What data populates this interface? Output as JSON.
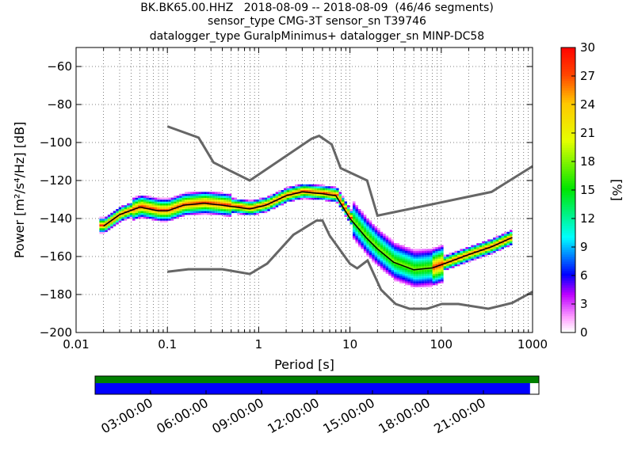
{
  "title": {
    "line1": "BK.BK65.00.HHZ   2018-08-09 -- 2018-08-09  (46/46 segments)",
    "line2": "sensor_type CMG-3T sensor_sn T39746",
    "line3": "datalogger_type GuralpMinimus+ datalogger_sn MINP-DC58"
  },
  "chart_data": [
    {
      "type": "heatmap",
      "xlabel": "Period [s]",
      "ylabel": "Power [m²/s⁴/Hz] [dB]",
      "xscale": "log",
      "xlim": [
        0.01,
        1000
      ],
      "ylim": [
        -200,
        -50
      ],
      "xticks": [
        0.01,
        0.1,
        1,
        10,
        100,
        1000
      ],
      "xtick_labels": [
        "0.01",
        "0.1",
        "1",
        "10",
        "100",
        "1000"
      ],
      "yticks": [
        -200,
        -180,
        -160,
        -140,
        -120,
        -100,
        -80,
        -60
      ],
      "ytick_labels": [
        "−200",
        "−180",
        "−160",
        "−140",
        "−120",
        "−100",
        "−80",
        "−60"
      ],
      "grid": true,
      "colorbar": {
        "label": "[%]",
        "range": [
          0,
          30
        ],
        "ticks": [
          0,
          3,
          6,
          9,
          12,
          15,
          18,
          21,
          24,
          27,
          30
        ],
        "tick_labels": [
          "0",
          "3",
          "6",
          "9",
          "12",
          "15",
          "18",
          "21",
          "24",
          "27",
          "30"
        ]
      },
      "nhnm": {
        "x": [
          0.1,
          0.22,
          0.32,
          0.8,
          3.8,
          4.6,
          6.3,
          7.9,
          15.4,
          20,
          354.8,
          1000
        ],
        "y": [
          -91.5,
          -97.4,
          -110.5,
          -120,
          -98,
          -96.5,
          -101,
          -113.5,
          -120,
          -138.5,
          -126,
          -112.5
        ]
      },
      "nlnm": {
        "x": [
          0.1,
          0.17,
          0.4,
          0.8,
          1.24,
          2.4,
          4.3,
          5,
          6,
          10,
          12,
          15.6,
          21.9,
          31.6,
          45,
          70,
          101,
          154,
          328,
          600,
          1000
        ],
        "y": [
          -168,
          -166.7,
          -166.7,
          -169.2,
          -163.7,
          -148.6,
          -141.1,
          -141.1,
          -149,
          -163.8,
          -166.2,
          -162.1,
          -177.5,
          -185,
          -187.5,
          -187.5,
          -185,
          -185,
          -187.5,
          -184.4,
          -178.6
        ]
      },
      "median": {
        "x": [
          0.02,
          0.03,
          0.05,
          0.08,
          0.1,
          0.15,
          0.25,
          0.4,
          0.8,
          1.2,
          2,
          3,
          5,
          7,
          10,
          15,
          20,
          30,
          50,
          80,
          120,
          200,
          350,
          600
        ],
        "y": [
          -144,
          -138,
          -134,
          -136,
          -136,
          -133,
          -132,
          -133,
          -135,
          -133,
          -128,
          -126,
          -127,
          -128,
          -140,
          -150,
          -156,
          -163,
          -167,
          -166,
          -163,
          -159,
          -155,
          -150
        ]
      }
    },
    {
      "type": "timeline",
      "xtick_labels": [
        "03:00:00",
        "06:00:00",
        "09:00:00",
        "12:00:00",
        "15:00:00",
        "18:00:00",
        "21:00:00"
      ],
      "top_bar": {
        "color": "#008000",
        "coverage": [
          0,
          1
        ]
      },
      "bottom_bar": {
        "color": "#0000ff",
        "coverage": [
          0,
          0.98
        ]
      }
    }
  ]
}
